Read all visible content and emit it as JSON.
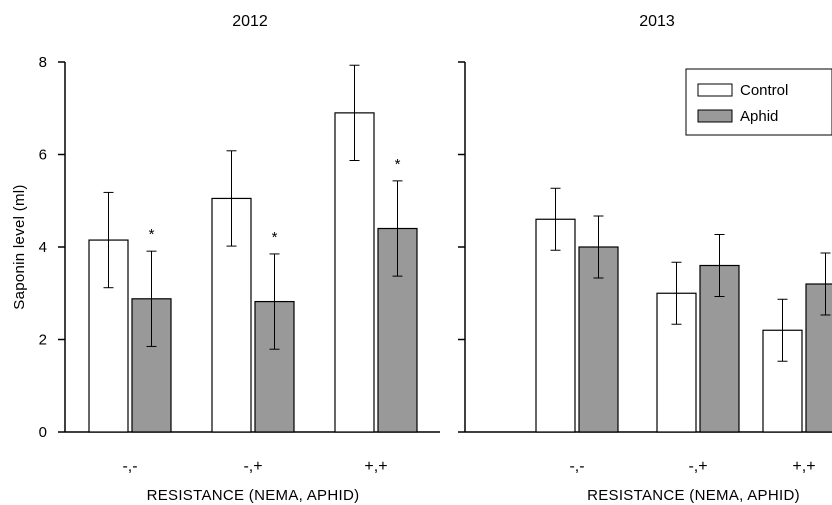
{
  "chart_data": [
    {
      "type": "bar",
      "title": "2012",
      "xlabel": "RESISTANCE (NEMA, APHID)",
      "ylabel": "Saponin level (ml)",
      "ylim": [
        0,
        8
      ],
      "yticks": [
        0,
        2,
        4,
        6,
        8
      ],
      "categories": [
        "-,-",
        "-,+",
        "+,+"
      ],
      "series": [
        {
          "name": "Control",
          "color": "#ffffff",
          "values": [
            4.15,
            5.05,
            6.9
          ],
          "errors": [
            1.03,
            1.03,
            1.03
          ]
        },
        {
          "name": "Aphid",
          "color": "#999999",
          "values": [
            2.88,
            2.82,
            4.4
          ],
          "errors": [
            1.03,
            1.03,
            1.03
          ],
          "annotations": [
            "*",
            "*",
            "*"
          ]
        }
      ]
    },
    {
      "type": "bar",
      "title": "2013",
      "xlabel": "RESISTANCE (NEMA, APHID)",
      "ylabel": "",
      "ylim": [
        0,
        8
      ],
      "yticks": [
        0,
        2,
        4,
        6,
        8
      ],
      "categories": [
        "-,-",
        "-,+",
        "+,+"
      ],
      "series": [
        {
          "name": "Control",
          "color": "#ffffff",
          "values": [
            4.6,
            3.0,
            2.2
          ],
          "errors": [
            0.67,
            0.67,
            0.67
          ]
        },
        {
          "name": "Aphid",
          "color": "#999999",
          "values": [
            4.0,
            3.6,
            3.2
          ],
          "errors": [
            0.67,
            0.67,
            0.67
          ]
        }
      ],
      "legend": {
        "position": "top-right",
        "entries": [
          "Control",
          "Aphid"
        ]
      }
    }
  ]
}
